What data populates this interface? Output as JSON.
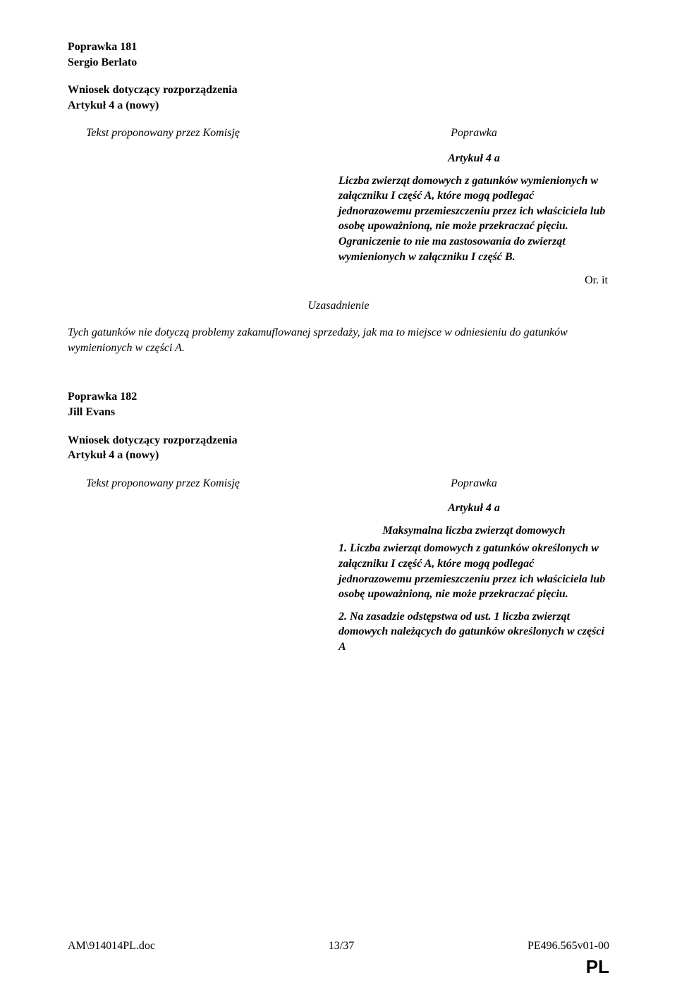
{
  "amendment181": {
    "number": "Poprawka 181",
    "author": "Sergio Berlato",
    "subject_line1": "Wniosek dotyczący rozporządzenia",
    "subject_line2": "Artykuł 4 a (nowy)",
    "left_header": "Tekst proponowany przez Komisję",
    "right_header": "Poprawka",
    "article_heading": "Artykuł 4 a",
    "article_body": "Liczba zwierząt domowych z gatunków wymienionych w załączniku I część A, które mogą podlegać jednorazowemu przemieszczeniu przez ich właściciela lub osobę upoważnioną, nie może przekraczać pięciu. Ograniczenie to nie ma zastosowania do zwierząt wymienionych w załączniku I część B.",
    "or_lang": "Or. it",
    "justification_label": "Uzasadnienie",
    "justification_text": "Tych gatunków nie dotyczą problemy zakamuflowanej sprzedaży, jak ma to miejsce w odniesieniu do gatunków wymienionych w części A."
  },
  "amendment182": {
    "number": "Poprawka 182",
    "author": "Jill Evans",
    "subject_line1": "Wniosek dotyczący rozporządzenia",
    "subject_line2": "Artykuł 4 a (nowy)",
    "left_header": "Tekst proponowany przez Komisję",
    "right_header": "Poprawka",
    "article_heading": "Artykuł 4 a",
    "article_subheading": "Maksymalna liczba zwierząt domowych",
    "para1": "1. Liczba zwierząt domowych z gatunków określonych w załączniku I część A, które mogą podlegać jednorazowemu przemieszczeniu przez ich właściciela lub osobę upoważnioną, nie może przekraczać pięciu.",
    "para2": "2. Na zasadzie odstępstwa od ust. 1 liczba zwierząt domowych należących do gatunków określonych w części A"
  },
  "footer": {
    "left": "AM\\914014PL.doc",
    "center": "13/37",
    "right": "PE496.565v01-00"
  },
  "pl_mark": "PL"
}
